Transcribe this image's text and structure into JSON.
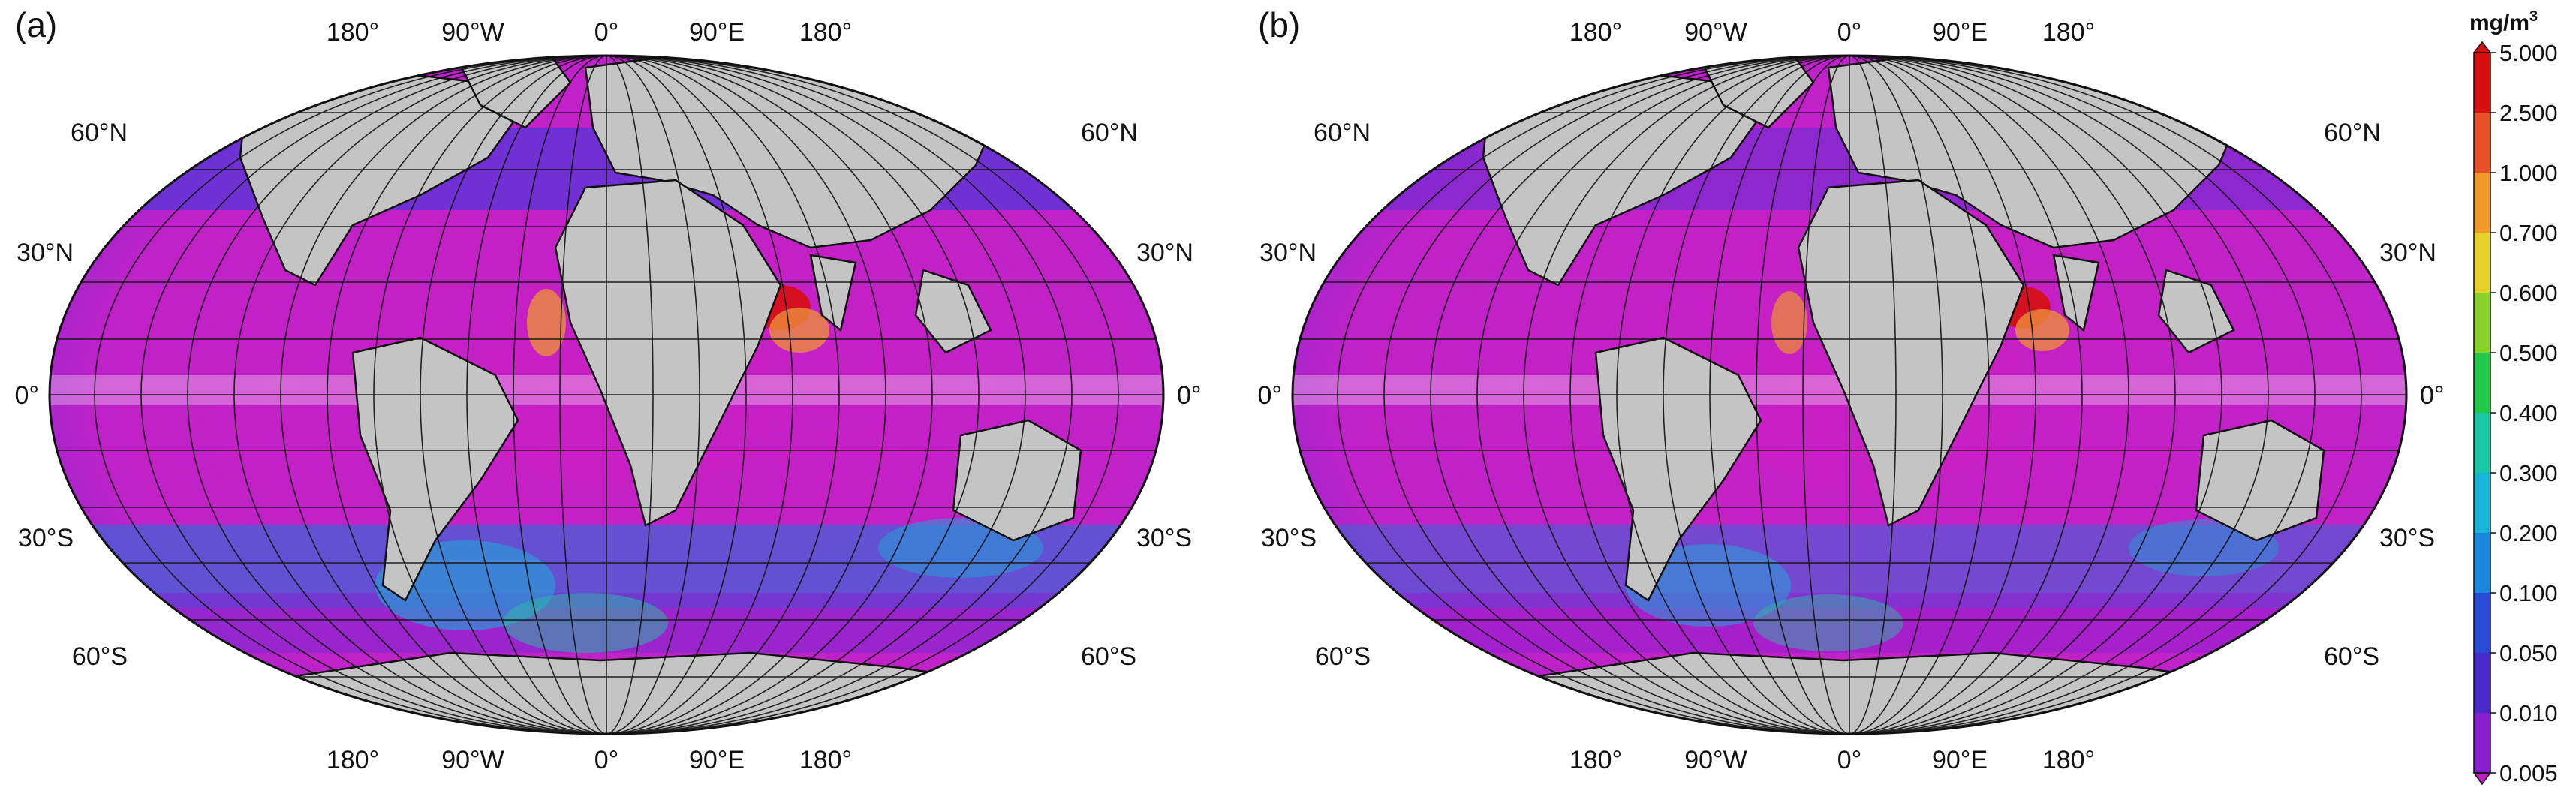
{
  "panels": [
    {
      "label": "(a)",
      "lon_labels": [
        "180°",
        "90°W",
        "0°",
        "90°E",
        "180°"
      ],
      "lat_labels_left": [
        "60°N",
        "30°N",
        "0°",
        "30°S",
        "60°S"
      ],
      "lat_labels_right": [
        "60°N",
        "30°N",
        "0°",
        "30°S",
        "60°S"
      ]
    },
    {
      "label": "(b)",
      "lon_labels": [
        "180°",
        "90°W",
        "0°",
        "90°E",
        "180°"
      ],
      "lat_labels_left": [
        "60°N",
        "30°N",
        "0°",
        "30°S",
        "60°S"
      ],
      "lat_labels_right": [
        "60°N",
        "30°N",
        "0°",
        "30°S",
        "60°S"
      ]
    }
  ],
  "colorbar": {
    "unit_prefix": "mg/m",
    "unit_exp": "3",
    "ticks": [
      "5.000",
      "2.500",
      "1.000",
      "0.700",
      "0.600",
      "0.500",
      "0.400",
      "0.300",
      "0.200",
      "0.100",
      "0.050",
      "0.010",
      "0.005"
    ],
    "colors": [
      "#d60f0f",
      "#e8502a",
      "#f09a2a",
      "#e8d22a",
      "#8bd12a",
      "#22c84a",
      "#19c8a6",
      "#18b4d8",
      "#1b86de",
      "#2a4ad8",
      "#4b28c8",
      "#8a1fd0",
      "#c020c0"
    ]
  },
  "colors": {
    "ocean_low": "#c81fc4",
    "ocean_mid": "#5a2fd6",
    "ocean_high": "#1aa6d8",
    "land": "#c4c4c4",
    "grid": "#111111"
  }
}
